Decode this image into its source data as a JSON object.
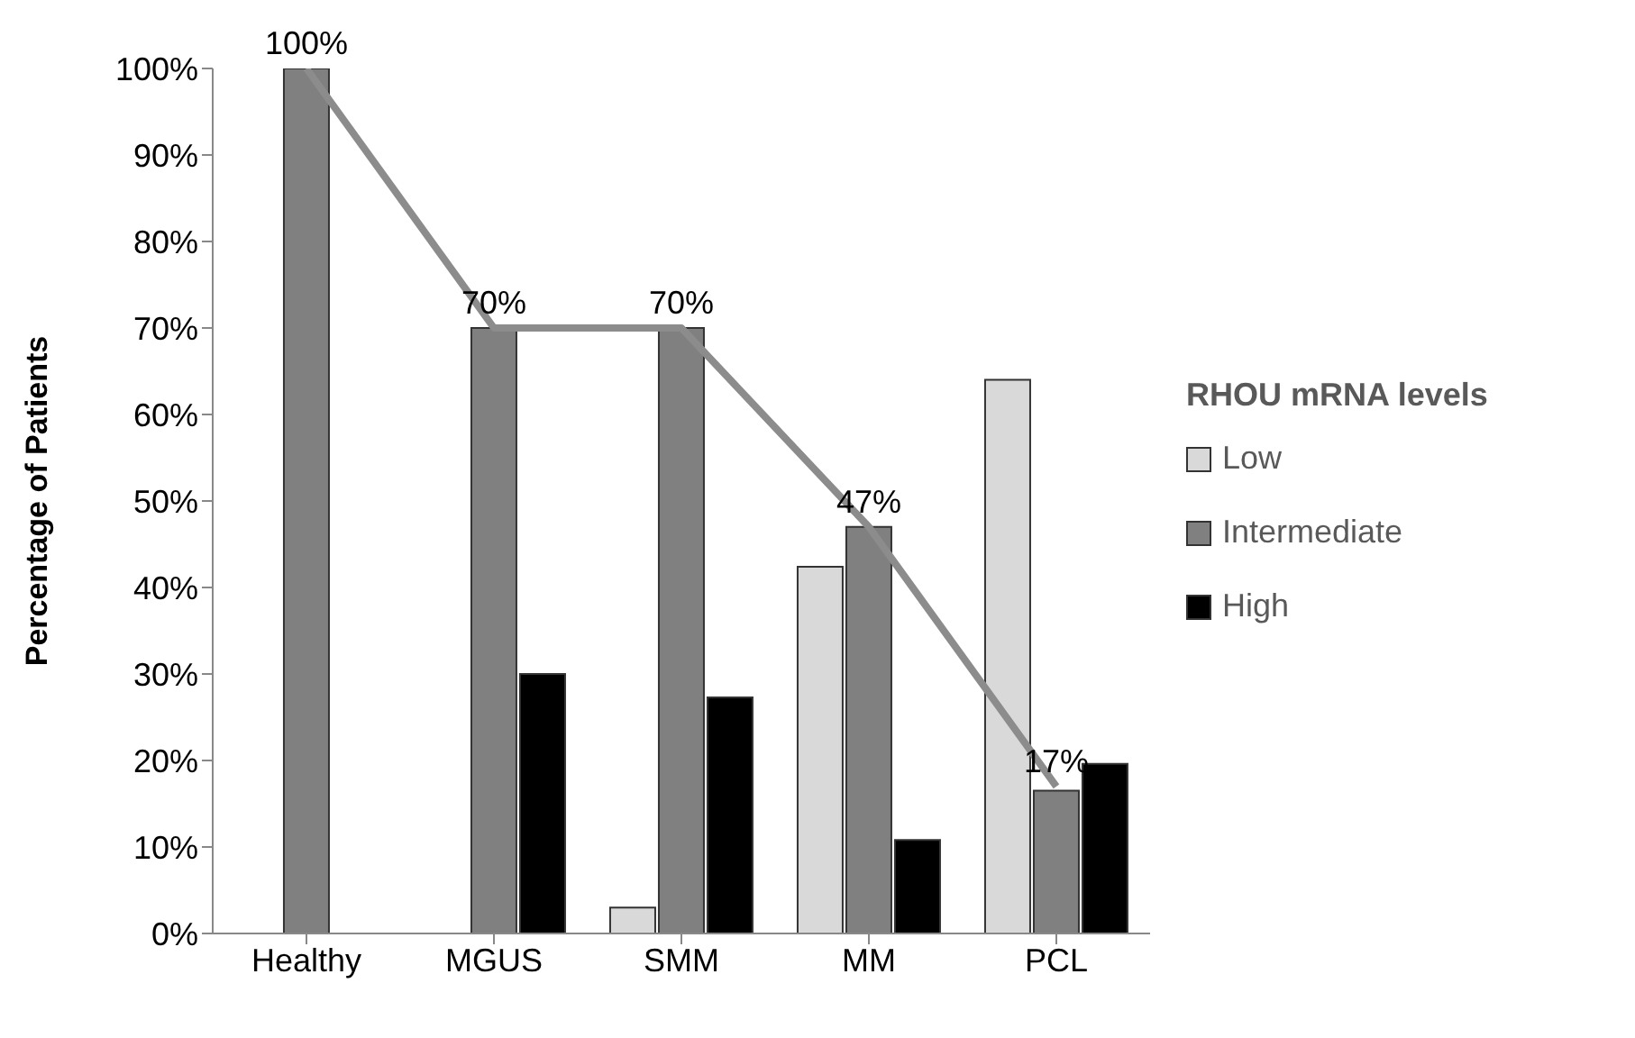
{
  "chart_data": {
    "type": "bar",
    "ylabel": "Percentage of Patients",
    "legend_title": "RHOU mRNA levels",
    "categories": [
      "Healthy",
      "MGUS",
      "SMM",
      "MM",
      "PCL"
    ],
    "series": [
      {
        "name": "Low",
        "color": "#d9d9d9",
        "values": [
          null,
          null,
          3,
          42.4,
          64
        ]
      },
      {
        "name": "Intermediate",
        "color": "#808080",
        "values": [
          100,
          70,
          70,
          47,
          16.5
        ]
      },
      {
        "name": "High",
        "color": "#000000",
        "values": [
          null,
          30,
          27.3,
          10.8,
          19.6
        ]
      },
      {
        "type": "line",
        "color": "#8c8c8c",
        "values": [
          100,
          70,
          70,
          47,
          17
        ],
        "value_labels": [
          "100%",
          "70%",
          "70%",
          "47%",
          "17%"
        ]
      }
    ],
    "ylim": [
      0,
      100
    ],
    "yticks": [
      {
        "value": 0,
        "label": "0%"
      },
      {
        "value": 10,
        "label": "10%"
      },
      {
        "value": 20,
        "label": "20%"
      },
      {
        "value": 30,
        "label": "30%"
      },
      {
        "value": 40,
        "label": "40%"
      },
      {
        "value": 50,
        "label": "50%"
      },
      {
        "value": 60,
        "label": "60%"
      },
      {
        "value": 70,
        "label": "70%"
      },
      {
        "value": 80,
        "label": "80%"
      },
      {
        "value": 90,
        "label": "90%"
      },
      {
        "value": 100,
        "label": "100%"
      }
    ],
    "legend": "right",
    "grid": false,
    "marker": "none"
  }
}
